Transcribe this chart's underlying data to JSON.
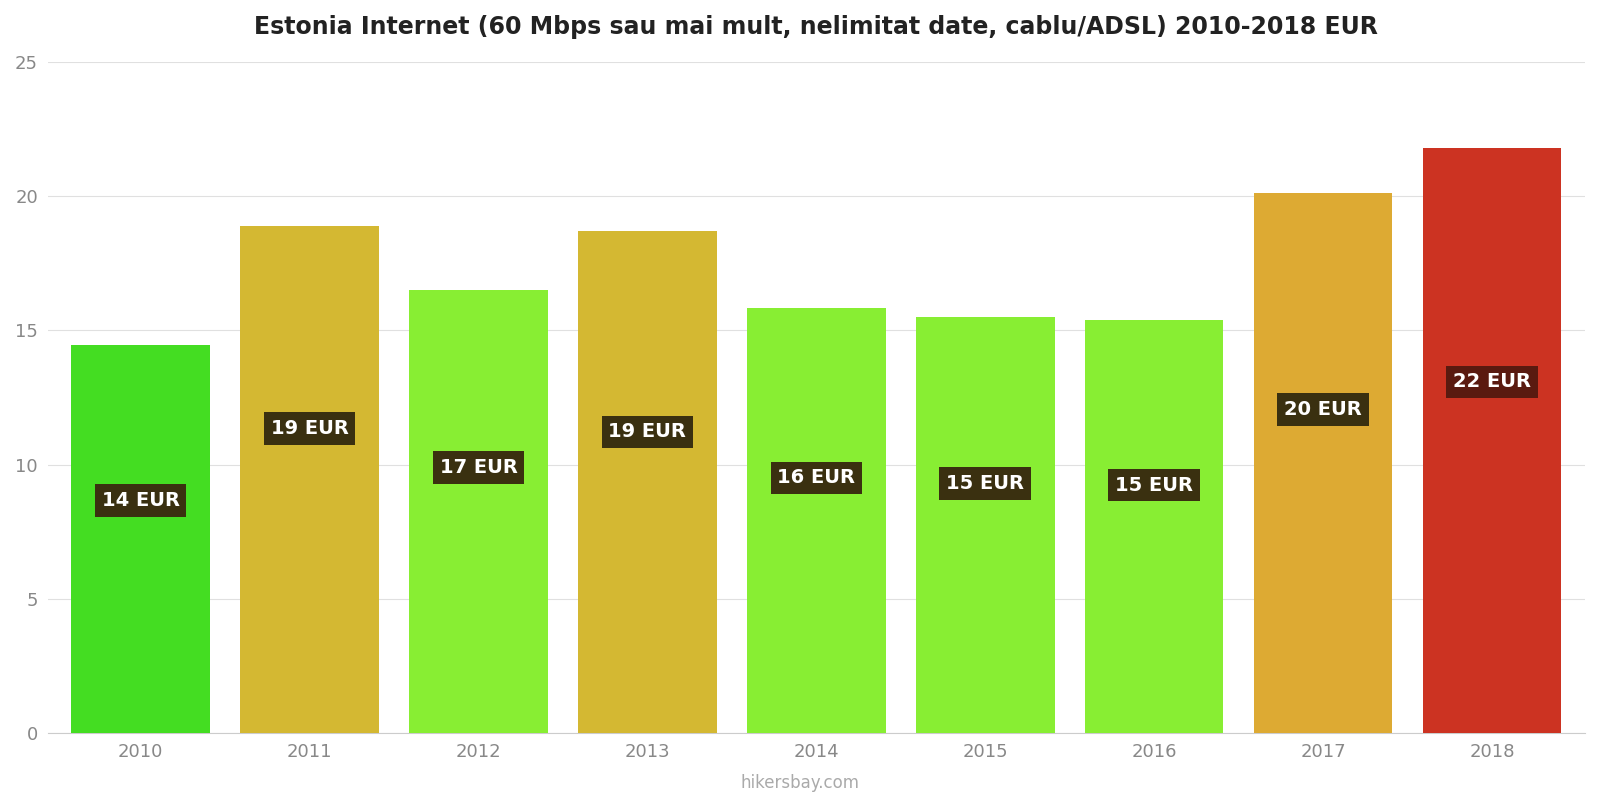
{
  "title": "Estonia Internet (60 Mbps sau mai mult, nelimitat date, cablu/ADSL) 2010-2018 EUR",
  "years": [
    2010,
    2011,
    2012,
    2013,
    2014,
    2015,
    2016,
    2017,
    2018
  ],
  "values": [
    14.45,
    18.9,
    16.5,
    18.7,
    15.85,
    15.5,
    15.4,
    20.1,
    21.8
  ],
  "labels": [
    "14 EUR",
    "19 EUR",
    "17 EUR",
    "19 EUR",
    "16 EUR",
    "15 EUR",
    "15 EUR",
    "20 EUR",
    "22 EUR"
  ],
  "bar_colors": [
    "#44dd22",
    "#d4b832",
    "#88ee33",
    "#d4b832",
    "#88ee33",
    "#88ee33",
    "#88ee33",
    "#ddaa33",
    "#cc3322"
  ],
  "label_bg_colors": [
    "#3a3010",
    "#3a3010",
    "#3a3010",
    "#3a3010",
    "#3a3010",
    "#3a3010",
    "#3a3010",
    "#3a3010",
    "#5a1a10"
  ],
  "ylim": [
    0,
    25
  ],
  "yticks": [
    0,
    5,
    10,
    15,
    20,
    25
  ],
  "watermark": "hikersbay.com",
  "background_color": "#ffffff",
  "title_fontsize": 17,
  "label_fontsize": 14,
  "bar_width": 0.82
}
